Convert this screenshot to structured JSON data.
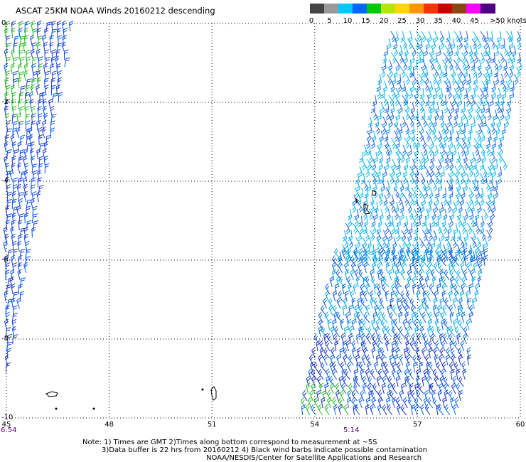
{
  "title": "ASCAT 25KM NOAA Winds 20160212 descending",
  "legend": {
    "labels": [
      "0",
      "5",
      "10",
      "15",
      "20",
      "25",
      "30",
      "35",
      "40",
      "45",
      ">50 knots"
    ],
    "colors": [
      "#444444",
      "#999999",
      "#00c8ff",
      "#0064ff",
      "#00c800",
      "#b4e600",
      "#ffd700",
      "#ff9600",
      "#ff3200",
      "#c80000",
      "#8b4513",
      "#ff00ff",
      "#4b0082"
    ]
  },
  "map": {
    "lon_range": [
      45,
      60
    ],
    "lat_range": [
      -10,
      0
    ],
    "lon_ticks": [
      "45",
      "48",
      "51",
      "54",
      "57",
      "60"
    ],
    "lat_ticks": [
      "0",
      "-2",
      "-4",
      "-6",
      "-8",
      "-10"
    ],
    "time_labels": [
      {
        "text": "6:54",
        "lon": 45
      },
      {
        "text": "5:14",
        "lon": 55
      }
    ]
  },
  "notes": {
    "line1": "Note: 1) Times are GMT 2)Times along bottom correspond to measurement at ~5S",
    "line2": "3)Data buffer is 22 hrs from 20160212 4) Black wind barbs indicate possible contamination",
    "line3": "NOAA/NESDIS/Center for Satellite Applications and Research"
  }
}
